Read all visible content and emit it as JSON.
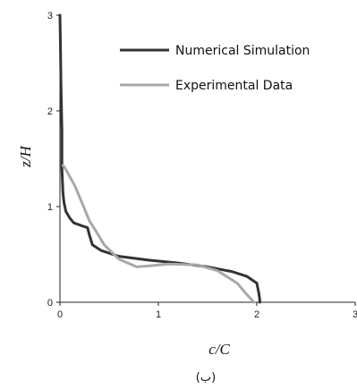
{
  "chart_data": {
    "type": "line",
    "title": "",
    "caption": "(ب)",
    "xlabel": "c/C",
    "ylabel": "z/H",
    "xlim": [
      0,
      3
    ],
    "ylim": [
      0,
      3
    ],
    "xticks": [
      "0",
      "1",
      "2",
      "3"
    ],
    "yticks": [
      "0",
      "1",
      "2",
      "3"
    ],
    "grid": false,
    "legend_position": "top-right",
    "series": [
      {
        "name": "Numerical Simulation",
        "color": "#333333",
        "points": [
          [
            2.03,
            0.0
          ],
          [
            2.03,
            0.03
          ],
          [
            2.02,
            0.1
          ],
          [
            2.0,
            0.2
          ],
          [
            1.9,
            0.27
          ],
          [
            1.75,
            0.32
          ],
          [
            1.5,
            0.37
          ],
          [
            1.2,
            0.41
          ],
          [
            0.9,
            0.44
          ],
          [
            0.6,
            0.48
          ],
          [
            0.42,
            0.54
          ],
          [
            0.33,
            0.6
          ],
          [
            0.3,
            0.7
          ],
          [
            0.28,
            0.78
          ],
          [
            0.22,
            0.8
          ],
          [
            0.14,
            0.83
          ],
          [
            0.1,
            0.88
          ],
          [
            0.06,
            0.95
          ],
          [
            0.04,
            1.05
          ],
          [
            0.03,
            1.15
          ],
          [
            0.02,
            1.4
          ],
          [
            0.02,
            1.8
          ],
          [
            0.01,
            2.3
          ],
          [
            0.005,
            2.7
          ],
          [
            0.0,
            3.0
          ]
        ]
      },
      {
        "name": "Experimental Data",
        "color": "#a8a8a8",
        "points": [
          [
            1.97,
            0.0
          ],
          [
            1.9,
            0.08
          ],
          [
            1.8,
            0.2
          ],
          [
            1.6,
            0.33
          ],
          [
            1.4,
            0.39
          ],
          [
            1.1,
            0.4
          ],
          [
            0.9,
            0.38
          ],
          [
            0.78,
            0.37
          ],
          [
            0.6,
            0.45
          ],
          [
            0.45,
            0.6
          ],
          [
            0.38,
            0.72
          ],
          [
            0.3,
            0.85
          ],
          [
            0.22,
            1.05
          ],
          [
            0.15,
            1.22
          ],
          [
            0.08,
            1.35
          ],
          [
            0.04,
            1.42
          ],
          [
            0.03,
            1.43
          ]
        ]
      }
    ]
  }
}
